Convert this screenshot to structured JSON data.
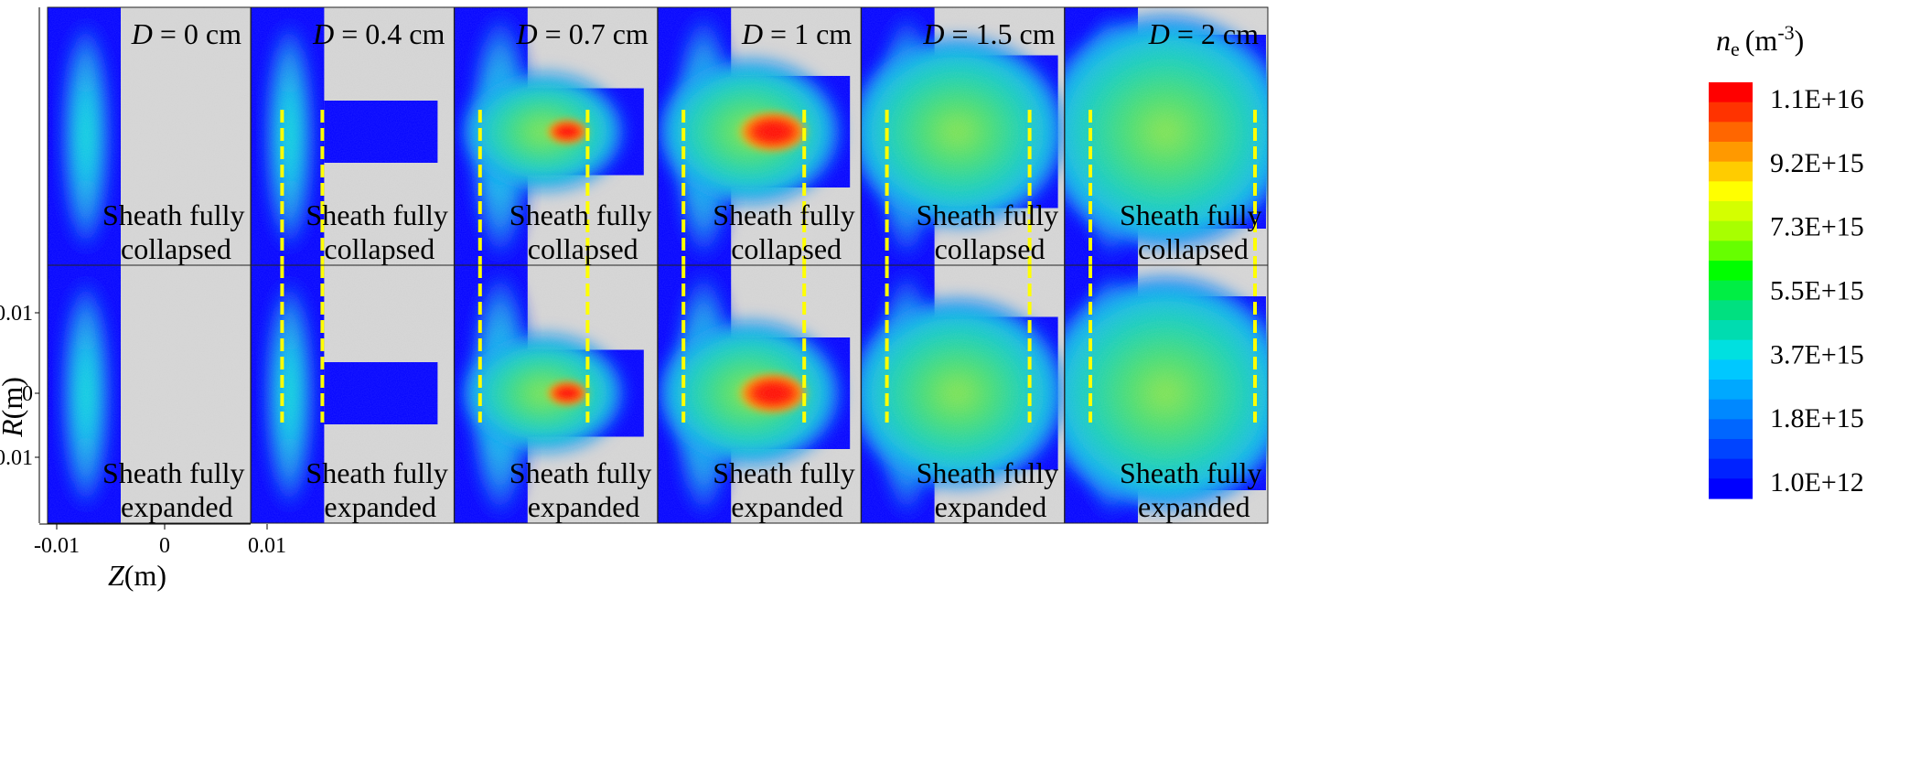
{
  "chart_data": {
    "type": "heatmap",
    "quantity": "n",
    "quantity_sub": "e",
    "unit_label": "(m",
    "unit_exp": "-3",
    "unit_close": ")",
    "colorbar_ticks": [
      "1.1E+16",
      "9.2E+15",
      "7.3E+15",
      "5.5E+15",
      "3.7E+15",
      "1.8E+15",
      "1.0E+12"
    ],
    "colorbar_colors": [
      "#ff0000",
      "#ff3300",
      "#ff6600",
      "#ff9900",
      "#ffcc00",
      "#ffff00",
      "#d4ff00",
      "#a8ff00",
      "#66ff00",
      "#00ff00",
      "#00ee44",
      "#00e080",
      "#00dcb0",
      "#00e0e0",
      "#00c8ff",
      "#00a8ff",
      "#0088ff",
      "#0066ff",
      "#0044ff",
      "#0022ff",
      "#0000ff"
    ],
    "xlabel_var": "Z",
    "xlabel_unit": "(m)",
    "ylabel_var": "R",
    "ylabel_unit": "(m)",
    "xticks": [
      "-0.01",
      "0",
      "0.01"
    ],
    "yticks": [
      "0.01",
      "0",
      "0.01"
    ],
    "panel_label_prefix": "D",
    "rows": [
      {
        "state": "collapsed",
        "line1": "Sheath fully",
        "line2": "collapsed"
      },
      {
        "state": "expanded",
        "line1": "Sheath fully",
        "line2": "expanded"
      }
    ],
    "panels": [
      {
        "D": "= 0 cm",
        "d": 0
      },
      {
        "D": "= 0.4 cm",
        "d": 0.4
      },
      {
        "D": "= 0.7 cm",
        "d": 0.7
      },
      {
        "D": "= 1 cm",
        "d": 1
      },
      {
        "D": "= 1.5 cm",
        "d": 1.5
      },
      {
        "D": "= 2 cm",
        "d": 2
      }
    ],
    "colors": {
      "background": "#d3d3d3",
      "min": "#0000ff",
      "dashed_line": "#ffff00"
    }
  }
}
